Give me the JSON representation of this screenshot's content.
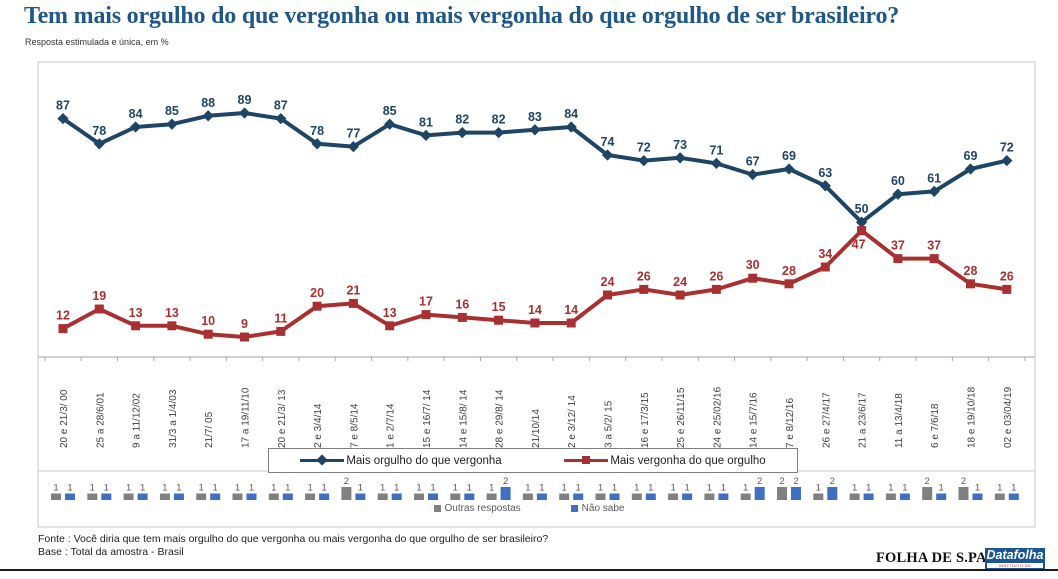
{
  "header": {
    "title": "Tem mais orgulho do que vergonha ou mais vergonha do que orgulho de ser brasileiro?",
    "subtitle": "Resposta estimulada e única, em %"
  },
  "chart_data": {
    "type": "line",
    "title": "Tem mais orgulho do que vergonha ou mais vergonha do que orgulho de ser brasileiro?",
    "subtitle": "Resposta estimulada e única, em %",
    "ylim": [
      0,
      100
    ],
    "grid": false,
    "legend_position": "bottom",
    "categories": [
      "20 e 21/3/ 00",
      "25 a 28/6/01",
      "9 a 11/12/02",
      "31/3 a 1/4/03",
      "21/7/ 05",
      "17 a 19/11/10",
      "20 e 21/3/ 13",
      "2 e 3/4/14",
      "7 e 8/5/14",
      "1 e 2/7/14",
      "15 e 16/7/ 14",
      "14 e 15/8/ 14",
      "28 e 29/8/ 14",
      "21/10/14",
      "2 e 3/12/ 14",
      "3 a 5/2/ 15",
      "16 e 17/3/15",
      "25 e 26/11/15",
      "24 e 25/02/16",
      "14 e 15/7/16",
      "7 e 8/12/16",
      "26 e 27/4/17",
      "21 a 23/6/17",
      "11 a 13/4/18",
      "6 e 7/6/18",
      "18 e 19/10/18",
      "02 e 03/04/19"
    ],
    "series": [
      {
        "name": "Mais orgulho do que vergonha",
        "color": "#1F4566",
        "marker": "diamond",
        "values": [
          87,
          78,
          84,
          85,
          88,
          89,
          87,
          78,
          77,
          85,
          81,
          82,
          82,
          83,
          84,
          74,
          72,
          73,
          71,
          67,
          69,
          63,
          50,
          60,
          61,
          69,
          72
        ]
      },
      {
        "name": "Mais vergonha do que orgulho",
        "color": "#A93030",
        "marker": "square",
        "values": [
          12,
          19,
          13,
          13,
          10,
          9,
          11,
          20,
          21,
          13,
          17,
          16,
          15,
          14,
          14,
          24,
          26,
          24,
          26,
          30,
          28,
          34,
          47,
          37,
          37,
          28,
          26
        ]
      }
    ],
    "bar_series": [
      {
        "name": "Outras respostas",
        "color": "#808080",
        "values": [
          1,
          1,
          1,
          1,
          1,
          1,
          1,
          1,
          2,
          1,
          1,
          1,
          1,
          1,
          1,
          1,
          1,
          1,
          1,
          1,
          2,
          1,
          1,
          1,
          2,
          2,
          1
        ]
      },
      {
        "name": "Não sabe",
        "color": "#3E6FC1",
        "values": [
          1,
          1,
          1,
          1,
          1,
          1,
          1,
          1,
          1,
          1,
          1,
          1,
          2,
          1,
          1,
          1,
          1,
          1,
          1,
          2,
          2,
          2,
          1,
          1,
          1,
          1,
          1
        ]
      }
    ]
  },
  "footer": {
    "fonte": "Fonte : Você diria que tem mais orgulho do que vergonha ou mais vergonha do que orgulho de ser brasileiro?",
    "base": "Base : Total da amostra - Brasil"
  },
  "logos": {
    "folha": "FOLHA DE S.PAULO",
    "datafolha": "Datafolha",
    "datafolha_sub": "INSTITUTO DE PESQUISAS"
  }
}
